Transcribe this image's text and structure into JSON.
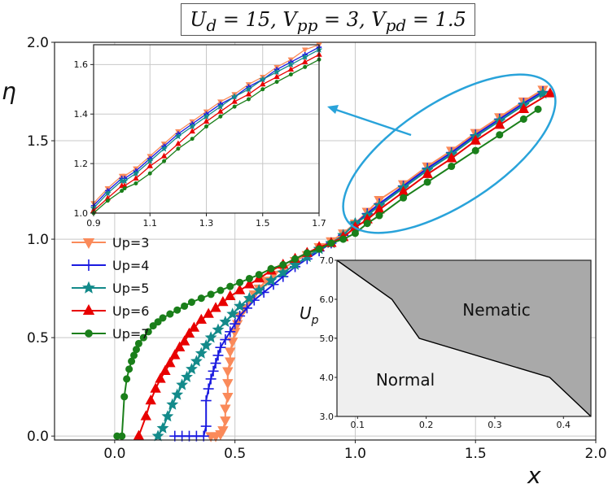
{
  "chart_data": [
    {
      "id": "main",
      "type": "line",
      "title": "U_d = 15, V_pp = 3, V_pd = 1.5",
      "xlabel": "x",
      "ylabel": "η",
      "xlim": [
        -0.25,
        2.0
      ],
      "ylim": [
        -0.02,
        2.0
      ],
      "xticks": [
        0.0,
        0.5,
        1.0,
        1.5,
        2.0
      ],
      "yticks": [
        0.0,
        0.5,
        1.0,
        1.5,
        2.0
      ],
      "xtick_labels": [
        "0.0",
        "0.5",
        "1.0",
        "1.5",
        "2.0"
      ],
      "ytick_labels": [
        "0.0",
        "0.5",
        "1.0",
        "1.5",
        "2.0"
      ],
      "grid": true,
      "legend_position": "left",
      "series": [
        {
          "name": "Up=3",
          "color": "#FA8A5A",
          "marker": "triangle-down",
          "x": [
            0.4,
            0.42,
            0.44,
            0.45,
            0.46,
            0.46,
            0.47,
            0.47,
            0.47,
            0.48,
            0.48,
            0.49,
            0.5,
            0.51,
            0.52,
            0.54,
            0.56,
            0.58,
            0.6,
            0.63,
            0.66,
            0.7,
            0.75,
            0.8,
            0.85,
            0.9,
            0.95,
            1.0,
            1.05,
            1.1,
            1.2,
            1.3,
            1.4,
            1.5,
            1.6,
            1.7,
            1.78
          ],
          "y": [
            0.0,
            0.0,
            0.01,
            0.03,
            0.08,
            0.14,
            0.2,
            0.27,
            0.33,
            0.38,
            0.43,
            0.48,
            0.53,
            0.57,
            0.61,
            0.65,
            0.69,
            0.72,
            0.75,
            0.79,
            0.82,
            0.85,
            0.89,
            0.92,
            0.96,
            0.99,
            1.03,
            1.08,
            1.14,
            1.2,
            1.28,
            1.37,
            1.45,
            1.54,
            1.62,
            1.7,
            1.76
          ]
        },
        {
          "name": "Up=4",
          "color": "#1A1AE0",
          "marker": "plus",
          "x": [
            0.25,
            0.28,
            0.31,
            0.34,
            0.37,
            0.38,
            0.38,
            0.39,
            0.4,
            0.41,
            0.42,
            0.43,
            0.44,
            0.46,
            0.48,
            0.5,
            0.52,
            0.55,
            0.58,
            0.62,
            0.66,
            0.7,
            0.75,
            0.8,
            0.85,
            0.9,
            0.95,
            1.0,
            1.05,
            1.1,
            1.2,
            1.3,
            1.4,
            1.5,
            1.6,
            1.7,
            1.78
          ],
          "y": [
            0.0,
            0.0,
            0.0,
            0.0,
            0.0,
            0.05,
            0.18,
            0.24,
            0.29,
            0.33,
            0.37,
            0.41,
            0.45,
            0.49,
            0.53,
            0.57,
            0.61,
            0.65,
            0.69,
            0.73,
            0.77,
            0.81,
            0.86,
            0.9,
            0.94,
            0.98,
            1.02,
            1.08,
            1.13,
            1.18,
            1.27,
            1.36,
            1.44,
            1.53,
            1.61,
            1.69,
            1.75
          ]
        },
        {
          "name": "Up=5",
          "color": "#138A8A",
          "marker": "star",
          "x": [
            0.18,
            0.2,
            0.22,
            0.24,
            0.26,
            0.28,
            0.3,
            0.32,
            0.34,
            0.36,
            0.38,
            0.4,
            0.43,
            0.46,
            0.49,
            0.52,
            0.56,
            0.6,
            0.65,
            0.7,
            0.75,
            0.8,
            0.85,
            0.9,
            0.95,
            1.0,
            1.05,
            1.1,
            1.2,
            1.3,
            1.4,
            1.5,
            1.6,
            1.7,
            1.78
          ],
          "y": [
            0.0,
            0.04,
            0.1,
            0.16,
            0.21,
            0.26,
            0.3,
            0.34,
            0.38,
            0.42,
            0.46,
            0.5,
            0.54,
            0.58,
            0.62,
            0.66,
            0.7,
            0.74,
            0.79,
            0.83,
            0.87,
            0.91,
            0.95,
            0.98,
            1.02,
            1.08,
            1.12,
            1.17,
            1.26,
            1.35,
            1.43,
            1.52,
            1.6,
            1.68,
            1.74
          ]
        },
        {
          "name": "Up=6",
          "color": "#E80000",
          "marker": "triangle-up",
          "x": [
            0.1,
            0.13,
            0.15,
            0.17,
            0.19,
            0.21,
            0.23,
            0.25,
            0.27,
            0.29,
            0.31,
            0.33,
            0.36,
            0.39,
            0.42,
            0.45,
            0.48,
            0.52,
            0.56,
            0.6,
            0.65,
            0.7,
            0.75,
            0.8,
            0.85,
            0.9,
            0.95,
            1.0,
            1.05,
            1.1,
            1.2,
            1.3,
            1.4,
            1.5,
            1.6,
            1.7,
            1.81
          ],
          "y": [
            0.0,
            0.1,
            0.18,
            0.24,
            0.29,
            0.33,
            0.37,
            0.41,
            0.45,
            0.48,
            0.52,
            0.55,
            0.59,
            0.62,
            0.65,
            0.68,
            0.71,
            0.74,
            0.77,
            0.8,
            0.84,
            0.87,
            0.9,
            0.93,
            0.96,
            0.98,
            1.01,
            1.06,
            1.1,
            1.15,
            1.24,
            1.33,
            1.41,
            1.5,
            1.58,
            1.66,
            1.74
          ]
        },
        {
          "name": "Up=7",
          "color": "#1A7F1A",
          "marker": "circle",
          "x": [
            0.01,
            0.03,
            0.04,
            0.05,
            0.06,
            0.07,
            0.08,
            0.09,
            0.1,
            0.12,
            0.14,
            0.16,
            0.18,
            0.2,
            0.23,
            0.26,
            0.29,
            0.32,
            0.36,
            0.4,
            0.44,
            0.48,
            0.52,
            0.56,
            0.6,
            0.65,
            0.7,
            0.75,
            0.8,
            0.85,
            0.9,
            0.95,
            1.0,
            1.05,
            1.1,
            1.2,
            1.3,
            1.4,
            1.5,
            1.6,
            1.7,
            1.76
          ],
          "y": [
            0.0,
            0.0,
            0.2,
            0.29,
            0.34,
            0.38,
            0.41,
            0.44,
            0.47,
            0.5,
            0.53,
            0.56,
            0.58,
            0.6,
            0.62,
            0.64,
            0.66,
            0.68,
            0.7,
            0.72,
            0.74,
            0.76,
            0.78,
            0.8,
            0.82,
            0.85,
            0.87,
            0.9,
            0.93,
            0.95,
            0.98,
            1.0,
            1.03,
            1.08,
            1.12,
            1.21,
            1.29,
            1.37,
            1.45,
            1.53,
            1.61,
            1.66
          ]
        }
      ]
    },
    {
      "id": "inset-zoom",
      "type": "line",
      "title": "",
      "xlim": [
        0.9,
        1.7
      ],
      "ylim": [
        1.0,
        1.68
      ],
      "xticks": [
        0.9,
        1.1,
        1.3,
        1.5,
        1.7
      ],
      "yticks": [
        1.0,
        1.2,
        1.4,
        1.6
      ],
      "xtick_labels": [
        "0.9",
        "1.1",
        "1.3",
        "1.5",
        "1.7"
      ],
      "ytick_labels": [
        "1.0",
        "1.2",
        "1.4",
        "1.6"
      ],
      "grid": true,
      "series": [
        {
          "name": "Up=3",
          "color": "#FA8A5A",
          "marker": "triangle-down",
          "x": [
            0.9,
            0.95,
            1.0,
            1.01,
            1.05,
            1.1,
            1.15,
            1.2,
            1.25,
            1.3,
            1.35,
            1.4,
            1.45,
            1.5,
            1.55,
            1.6,
            1.65,
            1.7
          ],
          "y": [
            1.04,
            1.1,
            1.15,
            1.15,
            1.18,
            1.23,
            1.28,
            1.33,
            1.37,
            1.41,
            1.45,
            1.48,
            1.52,
            1.55,
            1.59,
            1.62,
            1.66,
            1.68
          ]
        },
        {
          "name": "Up=4",
          "color": "#1A1AE0",
          "marker": "plus",
          "x": [
            0.9,
            0.95,
            1.0,
            1.01,
            1.05,
            1.1,
            1.15,
            1.2,
            1.25,
            1.3,
            1.35,
            1.4,
            1.45,
            1.5,
            1.55,
            1.6,
            1.65,
            1.7
          ],
          "y": [
            1.03,
            1.09,
            1.14,
            1.14,
            1.17,
            1.22,
            1.27,
            1.32,
            1.36,
            1.4,
            1.44,
            1.47,
            1.51,
            1.54,
            1.58,
            1.61,
            1.64,
            1.67
          ]
        },
        {
          "name": "Up=5",
          "color": "#138A8A",
          "marker": "star",
          "x": [
            0.9,
            0.95,
            1.0,
            1.01,
            1.05,
            1.1,
            1.15,
            1.2,
            1.25,
            1.3,
            1.35,
            1.4,
            1.45,
            1.5,
            1.55,
            1.6,
            1.65,
            1.7
          ],
          "y": [
            1.02,
            1.08,
            1.13,
            1.13,
            1.16,
            1.21,
            1.26,
            1.31,
            1.35,
            1.39,
            1.43,
            1.47,
            1.5,
            1.54,
            1.57,
            1.6,
            1.63,
            1.66
          ]
        },
        {
          "name": "Up=6",
          "color": "#E80000",
          "marker": "triangle-up",
          "x": [
            0.9,
            0.95,
            1.0,
            1.01,
            1.05,
            1.1,
            1.15,
            1.2,
            1.25,
            1.3,
            1.35,
            1.4,
            1.45,
            1.5,
            1.55,
            1.6,
            1.65,
            1.7
          ],
          "y": [
            1.01,
            1.06,
            1.11,
            1.11,
            1.14,
            1.19,
            1.23,
            1.28,
            1.33,
            1.37,
            1.41,
            1.45,
            1.48,
            1.52,
            1.55,
            1.58,
            1.61,
            1.64
          ]
        },
        {
          "name": "Up=7",
          "color": "#1A7F1A",
          "marker": "circle",
          "x": [
            0.9,
            0.95,
            1.0,
            1.01,
            1.05,
            1.1,
            1.15,
            1.2,
            1.25,
            1.3,
            1.35,
            1.4,
            1.45,
            1.5,
            1.55,
            1.6,
            1.65,
            1.7
          ],
          "y": [
            1.0,
            1.05,
            1.09,
            1.1,
            1.12,
            1.16,
            1.21,
            1.26,
            1.3,
            1.35,
            1.39,
            1.43,
            1.46,
            1.5,
            1.53,
            1.56,
            1.59,
            1.62
          ]
        }
      ]
    },
    {
      "id": "inset-phase",
      "type": "area",
      "title": "",
      "ylabel": "U_p",
      "xlim": [
        0.07,
        0.44
      ],
      "ylim": [
        3.0,
        7.0
      ],
      "xticks": [
        0.1,
        0.2,
        0.3,
        0.4
      ],
      "yticks": [
        3.0,
        4.0,
        5.0,
        6.0,
        7.0
      ],
      "xtick_labels": [
        "0.1",
        "0.2",
        "0.3",
        "0.4"
      ],
      "ytick_labels": [
        "3.0",
        "4.0",
        "5.0",
        "6.0",
        "7.0"
      ],
      "boundary": {
        "x": [
          0.07,
          0.15,
          0.19,
          0.38,
          0.44
        ],
        "y": [
          7.0,
          6.0,
          5.0,
          4.0,
          3.0
        ]
      },
      "regions": [
        {
          "name": "Nematic",
          "color": "#A9A9A9"
        },
        {
          "name": "Normal",
          "color": "#EFEFEF"
        }
      ]
    }
  ],
  "annotation": {
    "color": "#29A3DA"
  }
}
